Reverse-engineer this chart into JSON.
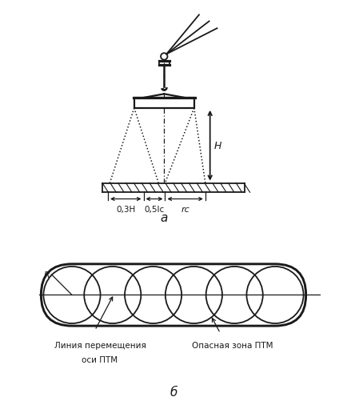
{
  "bg_color": "#ffffff",
  "line_color": "#1a1a1a",
  "fig_width": 4.34,
  "fig_height": 5.02,
  "label_a": "а",
  "label_b": "б",
  "label_0_3H": "0,3H",
  "label_0_5lc": "0,5lс",
  "label_rc": "rс",
  "label_H": "H",
  "label_R": "R",
  "label_line": "Линия перемещения",
  "label_axis": "оси ПТМ",
  "label_danger": "Опасная зона ПТМ"
}
